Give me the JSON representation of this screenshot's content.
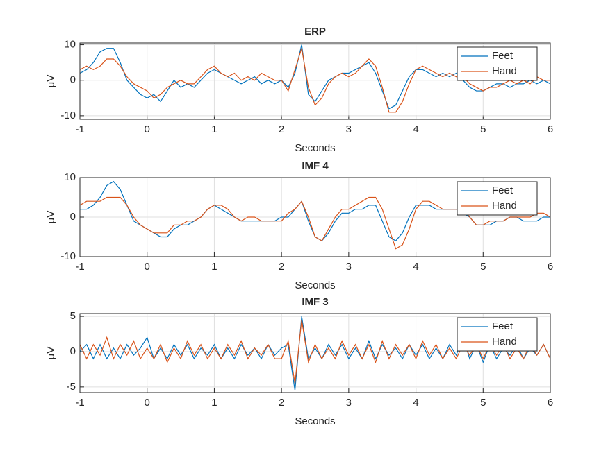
{
  "chart_data": [
    {
      "type": "line",
      "title": "ERP",
      "xlabel": "Seconds",
      "ylabel": "μV",
      "x": [
        -1,
        -0.9,
        -0.8,
        -0.7,
        -0.6,
        -0.5,
        -0.4,
        -0.3,
        -0.2,
        -0.1,
        0,
        0.1,
        0.2,
        0.3,
        0.4,
        0.5,
        0.6,
        0.7,
        0.8,
        0.9,
        1,
        1.1,
        1.2,
        1.3,
        1.4,
        1.5,
        1.6,
        1.7,
        1.8,
        1.9,
        2,
        2.1,
        2.2,
        2.3,
        2.4,
        2.5,
        2.6,
        2.7,
        2.8,
        2.9,
        3,
        3.1,
        3.2,
        3.3,
        3.4,
        3.5,
        3.6,
        3.7,
        3.8,
        3.9,
        4,
        4.1,
        4.2,
        4.3,
        4.4,
        4.5,
        4.6,
        4.7,
        4.8,
        4.9,
        5,
        5.1,
        5.2,
        5.3,
        5.4,
        5.5,
        5.6,
        5.7,
        5.8,
        5.9,
        6
      ],
      "series": [
        {
          "name": "Feet",
          "color": "#0072bd",
          "values": [
            2,
            3,
            5,
            8,
            9,
            9,
            5,
            0,
            -2,
            -4,
            -5,
            -4,
            -6,
            -3,
            0,
            -2,
            -1,
            -2,
            0,
            2,
            3,
            2,
            1,
            0,
            -1,
            0,
            1,
            -1,
            0,
            -1,
            0,
            -2,
            2,
            10,
            -4,
            -6,
            -3,
            0,
            1,
            2,
            2,
            3,
            4,
            5,
            2,
            -3,
            -8,
            -7,
            -3,
            1,
            3,
            3,
            2,
            1,
            2,
            1,
            2,
            0,
            -2,
            -3,
            -3,
            -2,
            -1,
            -1,
            -2,
            -1,
            -1,
            0,
            -1,
            0,
            -1
          ]
        },
        {
          "name": "Hand",
          "color": "#d95319",
          "values": [
            3,
            4,
            3,
            4,
            6,
            6,
            4,
            1,
            -1,
            -2,
            -3,
            -5,
            -4,
            -2,
            -1,
            0,
            -1,
            -1,
            1,
            3,
            4,
            2,
            1,
            2,
            0,
            1,
            0,
            2,
            1,
            0,
            0,
            -3,
            3,
            9,
            -2,
            -7,
            -5,
            -1,
            1,
            2,
            1,
            2,
            4,
            6,
            4,
            -2,
            -9,
            -9,
            -6,
            -1,
            3,
            4,
            3,
            2,
            1,
            2,
            1,
            1,
            -1,
            -2,
            -3,
            -2,
            -2,
            -1,
            0,
            -1,
            0,
            -1,
            1,
            0,
            0
          ]
        }
      ],
      "xlim": [
        -1,
        6
      ],
      "xticks": [
        -1,
        0,
        1,
        2,
        3,
        4,
        5,
        6
      ],
      "ylim": [
        -11,
        10.5
      ],
      "yticks": [
        -10,
        0,
        10
      ],
      "grid": true,
      "legend": "northeast"
    },
    {
      "type": "line",
      "title": "IMF 4",
      "xlabel": "Seconds",
      "ylabel": "μV",
      "x": [
        -1,
        -0.9,
        -0.8,
        -0.7,
        -0.6,
        -0.5,
        -0.4,
        -0.3,
        -0.2,
        -0.1,
        0,
        0.1,
        0.2,
        0.3,
        0.4,
        0.5,
        0.6,
        0.7,
        0.8,
        0.9,
        1,
        1.1,
        1.2,
        1.3,
        1.4,
        1.5,
        1.6,
        1.7,
        1.8,
        1.9,
        2,
        2.1,
        2.2,
        2.3,
        2.4,
        2.5,
        2.6,
        2.7,
        2.8,
        2.9,
        3,
        3.1,
        3.2,
        3.3,
        3.4,
        3.5,
        3.6,
        3.7,
        3.8,
        3.9,
        4,
        4.1,
        4.2,
        4.3,
        4.4,
        4.5,
        4.6,
        4.7,
        4.8,
        4.9,
        5,
        5.1,
        5.2,
        5.3,
        5.4,
        5.5,
        5.6,
        5.7,
        5.8,
        5.9,
        6
      ],
      "series": [
        {
          "name": "Feet",
          "color": "#0072bd",
          "values": [
            2,
            2,
            3,
            5,
            8,
            9,
            7,
            3,
            -1,
            -2,
            -3,
            -4,
            -5,
            -5,
            -3,
            -2,
            -2,
            -1,
            0,
            2,
            3,
            2,
            1,
            0,
            -1,
            -1,
            -1,
            -1,
            -1,
            -1,
            0,
            0,
            2,
            4,
            -1,
            -5,
            -6,
            -4,
            -1,
            1,
            1,
            2,
            2,
            3,
            3,
            -1,
            -5,
            -6,
            -4,
            0,
            3,
            3,
            3,
            2,
            2,
            2,
            2,
            1,
            0,
            -2,
            -2,
            -2,
            -1,
            -1,
            0,
            0,
            -1,
            -1,
            -1,
            0,
            0
          ]
        },
        {
          "name": "Hand",
          "color": "#d95319",
          "values": [
            3,
            4,
            4,
            4,
            5,
            5,
            5,
            3,
            0,
            -2,
            -3,
            -4,
            -4,
            -4,
            -2,
            -2,
            -1,
            -1,
            0,
            2,
            3,
            3,
            2,
            0,
            -1,
            0,
            0,
            -1,
            -1,
            -1,
            -1,
            1,
            2,
            4,
            0,
            -5,
            -6,
            -3,
            0,
            2,
            2,
            3,
            4,
            5,
            5,
            2,
            -3,
            -8,
            -7,
            -3,
            2,
            4,
            4,
            3,
            2,
            2,
            2,
            2,
            0,
            -2,
            -2,
            -1,
            -1,
            -1,
            0,
            0,
            0,
            0,
            1,
            1,
            0
          ]
        }
      ],
      "xlim": [
        -1,
        6
      ],
      "xticks": [
        -1,
        0,
        1,
        2,
        3,
        4,
        5,
        6
      ],
      "ylim": [
        -10,
        10
      ],
      "yticks": [
        -10,
        0,
        10
      ],
      "grid": true,
      "legend": "northeast"
    },
    {
      "type": "line",
      "title": "IMF 3",
      "xlabel": "Seconds",
      "ylabel": "μV",
      "x": [
        -1,
        -0.9,
        -0.8,
        -0.7,
        -0.6,
        -0.5,
        -0.4,
        -0.3,
        -0.2,
        -0.1,
        0,
        0.1,
        0.2,
        0.3,
        0.4,
        0.5,
        0.6,
        0.7,
        0.8,
        0.9,
        1,
        1.1,
        1.2,
        1.3,
        1.4,
        1.5,
        1.6,
        1.7,
        1.8,
        1.9,
        2,
        2.1,
        2.2,
        2.3,
        2.4,
        2.5,
        2.6,
        2.7,
        2.8,
        2.9,
        3,
        3.1,
        3.2,
        3.3,
        3.4,
        3.5,
        3.6,
        3.7,
        3.8,
        3.9,
        4,
        4.1,
        4.2,
        4.3,
        4.4,
        4.5,
        4.6,
        4.7,
        4.8,
        4.9,
        5,
        5.1,
        5.2,
        5.3,
        5.4,
        5.5,
        5.6,
        5.7,
        5.8,
        5.9,
        6
      ],
      "series": [
        {
          "name": "Feet",
          "color": "#0072bd",
          "values": [
            0,
            1,
            -1,
            1,
            -1,
            0.5,
            -1,
            1,
            -0.5,
            0.5,
            2,
            -1,
            0.5,
            -1,
            1,
            -0.5,
            1,
            -1,
            0.5,
            -0.5,
            1,
            -1,
            0.5,
            -1,
            1,
            -0.5,
            0.5,
            -1,
            1,
            -0.5,
            0.5,
            1,
            -5.5,
            5,
            -1,
            0.5,
            -1,
            1,
            -0.5,
            1,
            -1,
            0.5,
            -1,
            1.5,
            -1,
            1,
            -0.5,
            0.5,
            -1,
            1,
            -0.5,
            1,
            -1,
            0.5,
            -1,
            1,
            -0.5,
            2,
            -1,
            1,
            -1.5,
            1,
            -1,
            0.5,
            -0.5,
            1,
            -1,
            0.5,
            -0.5,
            1,
            -1
          ]
        },
        {
          "name": "Hand",
          "color": "#d95319",
          "values": [
            1,
            -1,
            1,
            -0.5,
            2,
            -1,
            1,
            -0.5,
            1.5,
            -1,
            0.5,
            -1,
            1,
            -1.5,
            0.5,
            -1,
            1.5,
            -0.5,
            1,
            -1,
            0.5,
            -1,
            1,
            -0.5,
            1.5,
            -1,
            0.5,
            -0.5,
            1,
            -1,
            -1,
            1.5,
            -4.5,
            4.5,
            -1.5,
            1,
            -1,
            0.5,
            -1,
            1.5,
            -0.5,
            1,
            -1,
            1,
            -1.5,
            1.5,
            -1,
            1,
            -0.5,
            1,
            -1,
            1.5,
            -0.5,
            1,
            -1,
            0.5,
            -1,
            1,
            -0.5,
            1,
            -1,
            1,
            -0.5,
            1,
            -1,
            0.5,
            -1,
            1,
            -0.5,
            1,
            -1
          ]
        }
      ],
      "xlim": [
        -1,
        6
      ],
      "xticks": [
        -1,
        0,
        1,
        2,
        3,
        4,
        5,
        6
      ],
      "ylim": [
        -5.8,
        5.4
      ],
      "yticks": [
        -5,
        0,
        5
      ],
      "grid": true,
      "legend": "northeast"
    }
  ]
}
